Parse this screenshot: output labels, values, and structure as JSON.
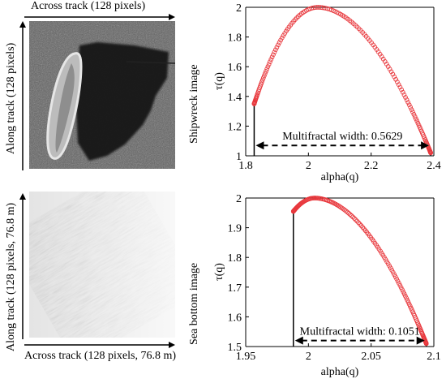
{
  "images": {
    "top": {
      "x_label": "Across track (128 pixels)",
      "y_label": "Along track (128 pixels)"
    },
    "bottom": {
      "x_label": "Across track (128 pixels, 76.8 m)",
      "y_label": "Along track (128 pixels, 76.8 m)"
    }
  },
  "chart_data": [
    {
      "type": "scatter",
      "side_label": "Shipwreck image",
      "xlabel": "alpha(q)",
      "ylabel": "τ(q)",
      "xlim": [
        1.8,
        2.4
      ],
      "ylim": [
        1.0,
        2.0
      ],
      "xticks": [
        "1.8",
        "2",
        "2.2",
        "2.4"
      ],
      "yticks": [
        "1",
        "1.2",
        "1.4",
        "1.6",
        "1.8",
        "2"
      ],
      "grid": false,
      "marker_color": "#e8383d",
      "alpha_min": 1.827,
      "alpha_max": 2.39,
      "alpha_peak": 2.03,
      "tau_left": 1.35,
      "tau_right": 1.02,
      "annotation": "Multifractal width: 0.5629",
      "annotation_y": 1.07
    },
    {
      "type": "scatter",
      "side_label": "Sea bottom image",
      "xlabel": "alpha(q)",
      "ylabel": "τ(q)",
      "xlim": [
        1.95,
        2.1
      ],
      "ylim": [
        1.5,
        2.0
      ],
      "xticks": [
        "1.95",
        "2",
        "2.05",
        "2.1"
      ],
      "yticks": [
        "1.5",
        "1.6",
        "1.7",
        "1.8",
        "1.9",
        "2"
      ],
      "grid": false,
      "marker_color": "#e8383d",
      "alpha_min": 1.988,
      "alpha_max": 2.094,
      "alpha_peak": 2.005,
      "tau_left": 1.955,
      "tau_right": 1.51,
      "annotation": "Multifractal width: 0.1051",
      "annotation_y": 1.52
    }
  ]
}
